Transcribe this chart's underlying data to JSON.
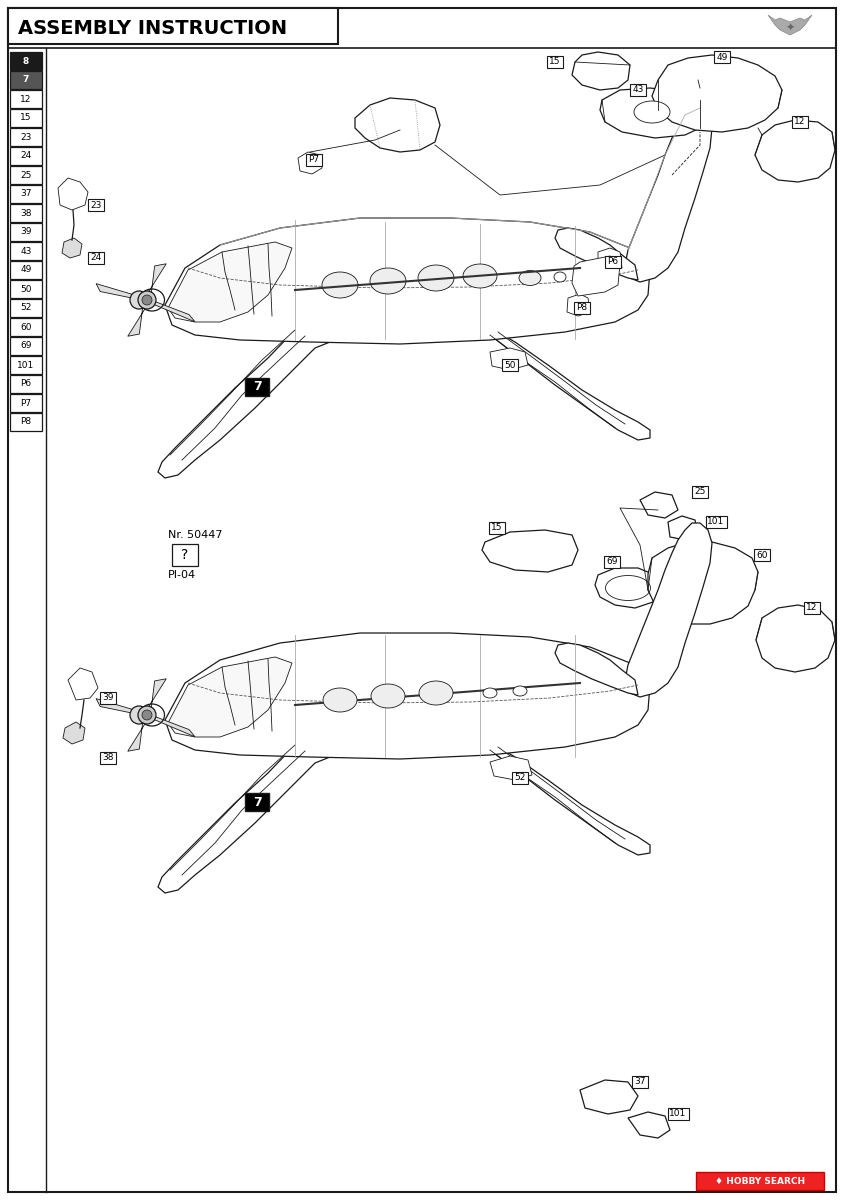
{
  "title": "ASSEMBLY INSTRUCTION",
  "bg": "#ffffff",
  "lc": "#1a1a1a",
  "lc_light": "#888888",
  "parts_list": [
    "8",
    "7",
    "12",
    "15",
    "23",
    "24",
    "25",
    "37",
    "38",
    "39",
    "43",
    "49",
    "50",
    "52",
    "60",
    "69",
    "101",
    "P6",
    "P7",
    "P8"
  ],
  "nr_text": "Nr. 50447",
  "pi_text": "PI-04"
}
